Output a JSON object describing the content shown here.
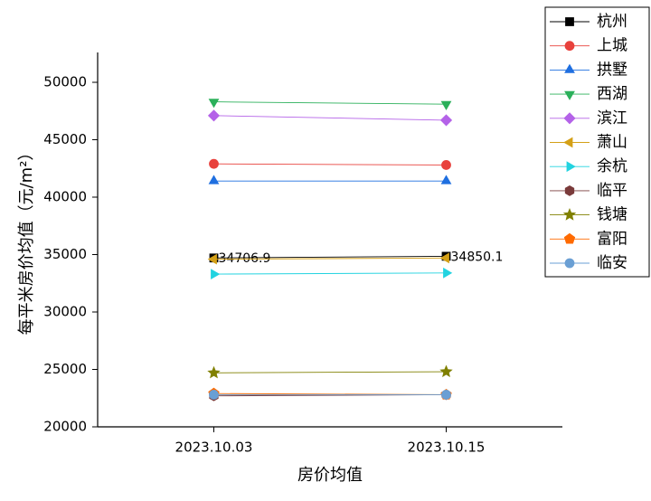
{
  "chart_data": {
    "type": "line",
    "xlabel": "房价均值",
    "ylabel": "每平米房价均值（元/m²）",
    "categories": [
      "2023.10.03",
      "2023.10.15"
    ],
    "ylim": [
      20000,
      52600
    ],
    "yticks": [
      20000,
      25000,
      30000,
      35000,
      40000,
      45000,
      50000
    ],
    "legend": "upper right",
    "series": [
      {
        "name": "杭州",
        "color": "#000000",
        "marker": "square",
        "values": [
          34706.9,
          34850.1
        ],
        "show_value_labels": true
      },
      {
        "name": "上城",
        "color": "#e8413c",
        "marker": "circle",
        "values": [
          42900,
          42800
        ]
      },
      {
        "name": "拱墅",
        "color": "#1f6fe0",
        "marker": "triangle-up",
        "values": [
          41400,
          41400
        ]
      },
      {
        "name": "西湖",
        "color": "#2bb05a",
        "marker": "triangle-down",
        "values": [
          48300,
          48100
        ]
      },
      {
        "name": "滨江",
        "color": "#b462e8",
        "marker": "diamond",
        "values": [
          47100,
          46700
        ]
      },
      {
        "name": "萧山",
        "color": "#d4a017",
        "marker": "triangle-left",
        "values": [
          34600,
          34700
        ]
      },
      {
        "name": "余杭",
        "color": "#22d3e0",
        "marker": "triangle-right",
        "values": [
          33300,
          33400
        ]
      },
      {
        "name": "临平",
        "color": "#7a3b3b",
        "marker": "hexagon",
        "values": [
          22700,
          22800
        ]
      },
      {
        "name": "钱塘",
        "color": "#808000",
        "marker": "star",
        "values": [
          24700,
          24800
        ]
      },
      {
        "name": "富阳",
        "color": "#ff6a00",
        "marker": "pentagon",
        "values": [
          22900,
          22800
        ]
      },
      {
        "name": "临安",
        "color": "#6a9fd4",
        "marker": "circle",
        "values": [
          22800,
          22800
        ]
      }
    ]
  }
}
